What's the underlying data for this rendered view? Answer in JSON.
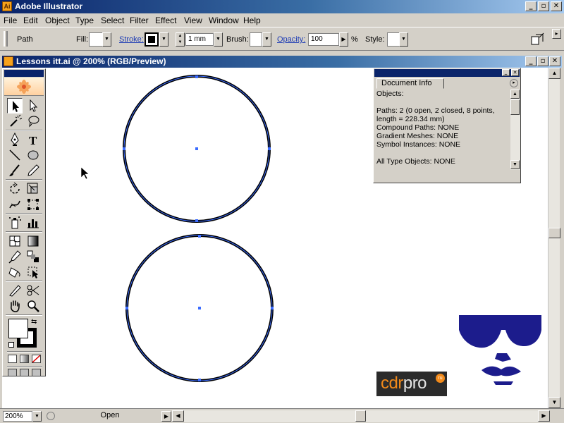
{
  "app": {
    "title": "Adobe Illustrator"
  },
  "menu": {
    "items": [
      "File",
      "Edit",
      "Object",
      "Type",
      "Select",
      "Filter",
      "Effect",
      "View",
      "Window",
      "Help"
    ]
  },
  "controlbar": {
    "selection_label": "Path",
    "fill_label": "Fill:",
    "stroke_label": "Stroke:",
    "stroke_weight": "1 mm",
    "brush_label": "Brush:",
    "opacity_label": "Opacity:",
    "opacity_value": "100",
    "opacity_unit": "%",
    "style_label": "Style:"
  },
  "document": {
    "title": "Lessons itt.ai @ 200% (RGB/Preview)"
  },
  "statusbar": {
    "zoom": "200%",
    "status": "Open"
  },
  "docinfo": {
    "tab": "Document Info",
    "lines": [
      "Objects:",
      "",
      "Paths: 2 (0 open, 2 closed, 8 points,",
      "length = 228.34 mm)",
      "Compound Paths: NONE",
      "Gradient Meshes: NONE",
      "Symbol Instances: NONE",
      "",
      "All Type Objects: NONE"
    ]
  },
  "watermark": {
    "brand_a": "cdr",
    "brand_b": "pro",
    "badge": "ru"
  },
  "colors": {
    "selection": "#3b6cff",
    "accent_title": "#0a246a",
    "glasses": "#1c1c8c"
  },
  "icons": [
    "selection-icon",
    "direct-selection-icon",
    "magic-wand-icon",
    "lasso-icon",
    "pen-icon",
    "type-icon",
    "line-icon",
    "ellipse-icon",
    "paintbrush-icon",
    "pencil-icon",
    "rotate-icon",
    "scale-icon",
    "warp-icon",
    "free-transform-icon",
    "symbol-sprayer-icon",
    "graph-icon",
    "mesh-icon",
    "gradient-icon",
    "eyedropper-icon",
    "blend-icon",
    "live-paint-icon",
    "live-paint-selection-icon",
    "slice-icon",
    "scissors-icon",
    "hand-icon",
    "zoom-icon"
  ]
}
